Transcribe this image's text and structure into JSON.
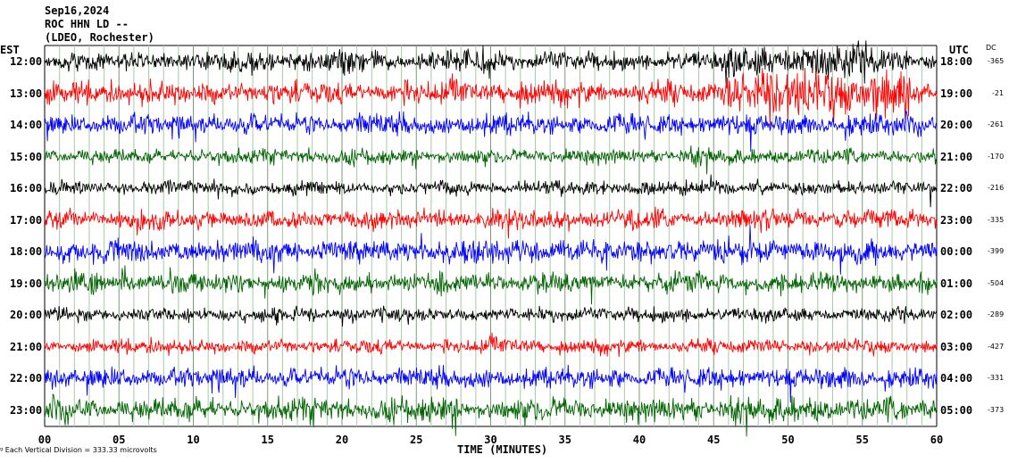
{
  "header": {
    "line1": "Sep16,2024",
    "line2": "ROC HHN LD --",
    "line3": "(LDEO, Rochester)"
  },
  "left_axis_label": "EST",
  "right_axis_label": "UTC",
  "dc_label": "DC",
  "footer": {
    "prefix": "ᵍ",
    "text": "Each Vertical Division =  333.33 microvolts"
  },
  "chart_data": {
    "type": "line",
    "description_kind": "helicorder",
    "xlabel": "TIME (MINUTES)",
    "x_ticks": [
      "00",
      "05",
      "10",
      "15",
      "20",
      "25",
      "30",
      "35",
      "40",
      "45",
      "50",
      "55",
      "60"
    ],
    "xlim": [
      0,
      60
    ],
    "trace_colors": [
      "#000000",
      "#ff0000",
      "#0000ff",
      "#006400"
    ],
    "rows": [
      {
        "est": "12:00",
        "utc": "18:00",
        "dc": "-365"
      },
      {
        "est": "13:00",
        "utc": "19:00",
        "dc": "-21"
      },
      {
        "est": "14:00",
        "utc": "20:00",
        "dc": "-261"
      },
      {
        "est": "15:00",
        "utc": "21:00",
        "dc": "-170"
      },
      {
        "est": "16:00",
        "utc": "22:00",
        "dc": "-216"
      },
      {
        "est": "17:00",
        "utc": "23:00",
        "dc": "-335"
      },
      {
        "est": "18:00",
        "utc": "00:00",
        "dc": "-399"
      },
      {
        "est": "19:00",
        "utc": "01:00",
        "dc": "-504"
      },
      {
        "est": "20:00",
        "utc": "02:00",
        "dc": "-289"
      },
      {
        "est": "21:00",
        "utc": "03:00",
        "dc": "-427"
      },
      {
        "est": "22:00",
        "utc": "04:00",
        "dc": "-331"
      },
      {
        "est": "23:00",
        "utc": "05:00",
        "dc": "-373"
      }
    ]
  }
}
